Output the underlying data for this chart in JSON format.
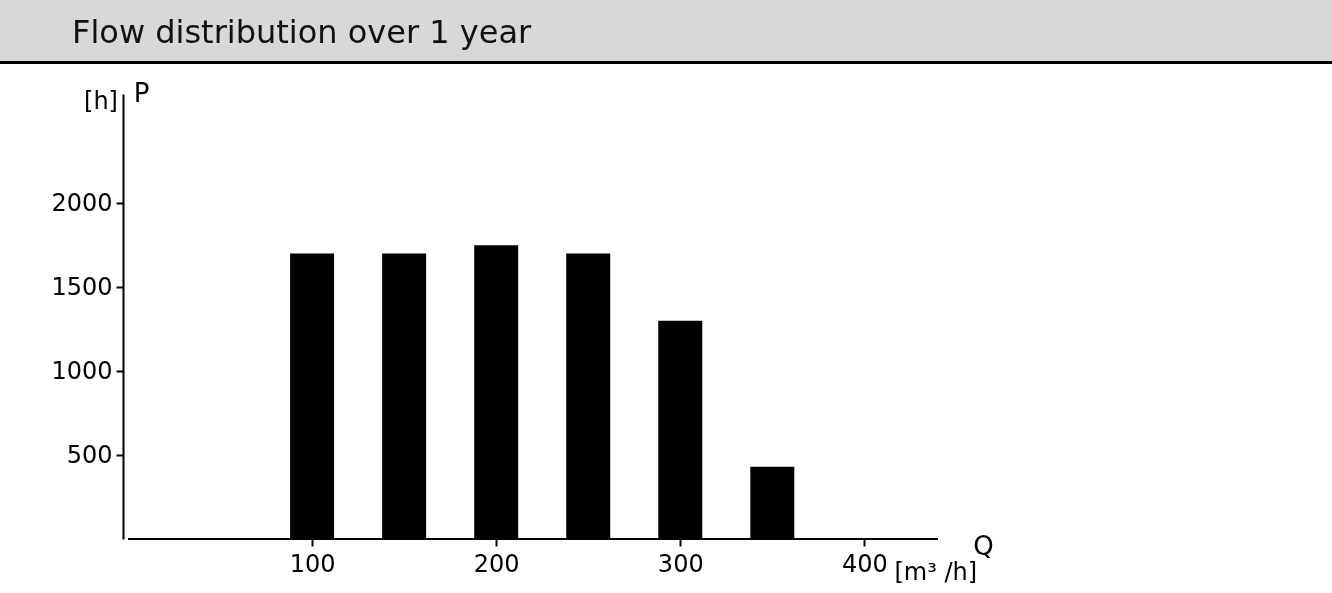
{
  "chart_data": {
    "type": "bar",
    "title": "Flow distribution over 1 year",
    "xlabel": "Q",
    "ylabel": "P",
    "annotations": [
      "[h]",
      "[m³ /h]"
    ],
    "x": [
      100,
      150,
      200,
      250,
      300,
      350
    ],
    "series": [
      {
        "color": "#000000",
        "values": [
          1700,
          1700,
          1750,
          1700,
          1300,
          430
        ]
      }
    ],
    "xlim": [
      0,
      440
    ],
    "xticks": [
      100,
      200,
      300,
      400
    ],
    "ylim": [
      0,
      2650
    ],
    "yticks": [
      500,
      1000,
      1500,
      2000
    ],
    "grid": false,
    "legend": false
  }
}
